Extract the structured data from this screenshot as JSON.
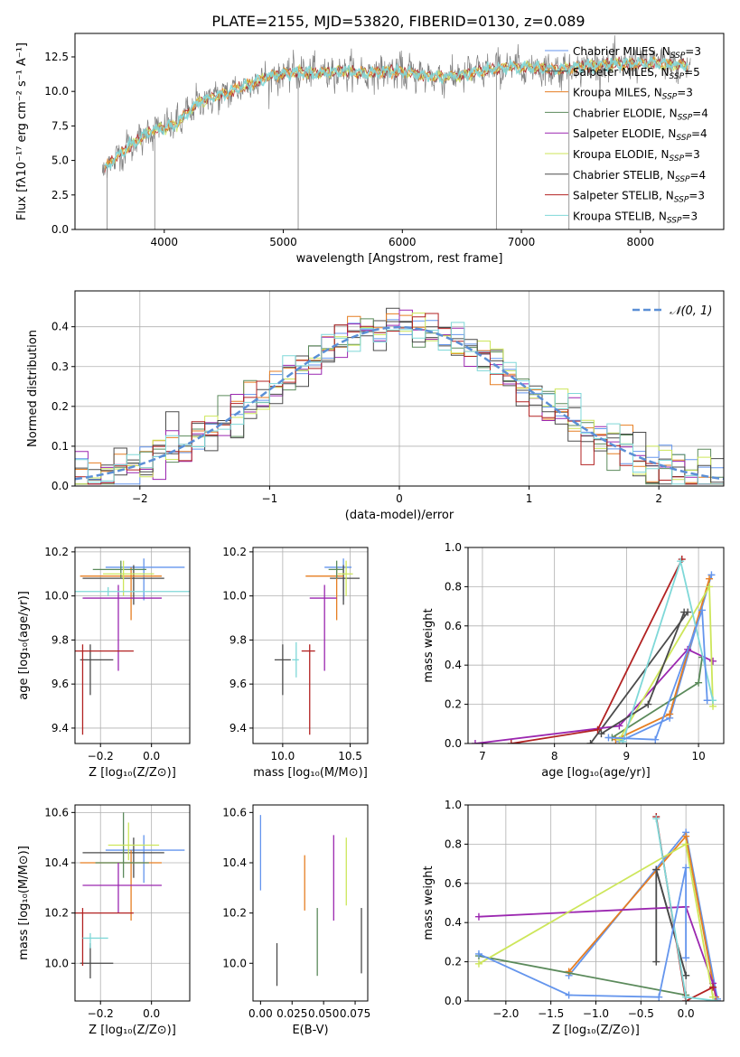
{
  "figure": {
    "title": "PLATE=2155, MJD=53820, FIBERID=0130, z=0.089"
  },
  "series_meta": [
    {
      "name": "Chabrier MILES",
      "nssp": "3",
      "color": "#6495ed"
    },
    {
      "name": "Salpeter MILES",
      "nssp": "5",
      "color": "#4b4b4b"
    },
    {
      "name": "Kroupa MILES",
      "nssp": "3",
      "color": "#e67e22"
    },
    {
      "name": "Chabrier ELODIE",
      "nssp": "4",
      "color": "#5b8a5b"
    },
    {
      "name": "Salpeter ELODIE",
      "nssp": "4",
      "color": "#9b27b0"
    },
    {
      "name": "Kroupa ELODIE",
      "nssp": "3",
      "color": "#cde65a"
    },
    {
      "name": "Chabrier STELIB",
      "nssp": "4",
      "color": "#4a4a4a"
    },
    {
      "name": "Salpeter STELIB",
      "nssp": "3",
      "color": "#b22222"
    },
    {
      "name": "Kroupa STELIB",
      "nssp": "3",
      "color": "#7fd8d8"
    }
  ],
  "chart_data": [
    {
      "id": "spectrum",
      "type": "line",
      "xlabel": "wavelength [Angstrom, rest frame]",
      "ylabel": "Flux [fλ10⁻¹⁷ erg cm⁻² s⁻¹ A⁻¹]",
      "xlim": [
        3250,
        8700
      ],
      "ylim": [
        0,
        14.2
      ],
      "xticks": [
        4000,
        5000,
        6000,
        7000,
        8000
      ],
      "yticks": [
        0.0,
        2.5,
        5.0,
        7.5,
        10.0,
        12.5
      ],
      "grid": false,
      "legend": "right",
      "x": [
        3500,
        3700,
        3900,
        4100,
        4300,
        4500,
        4700,
        4900,
        5100,
        5300,
        5500,
        5700,
        5900,
        6100,
        6300,
        6500,
        6700,
        6900,
        7100,
        7300,
        7500,
        7700,
        7900,
        8100,
        8300
      ],
      "y": [
        4.5,
        6.0,
        7.2,
        7.6,
        9.3,
        9.8,
        10.5,
        11.1,
        11.4,
        11.3,
        11.5,
        11.3,
        11.5,
        11.3,
        11.0,
        11.2,
        11.5,
        11.8,
        11.7,
        11.6,
        11.8,
        11.9,
        12.0,
        12.1,
        11.9
      ]
    },
    {
      "id": "residuals",
      "type": "line",
      "xlabel": "(data-model)/error",
      "ylabel": "Normed distribution",
      "xlim": [
        -2.5,
        2.5
      ],
      "ylim": [
        0,
        0.49
      ],
      "xticks": [
        -2,
        -1,
        0,
        1,
        2
      ],
      "yticks": [
        0.0,
        0.1,
        0.2,
        0.3,
        0.4
      ],
      "grid": true,
      "legend": "top-right",
      "legend_label": "𝒩(0, 1)",
      "normal_mean": 0,
      "normal_sigma": 1,
      "hist_bins": [
        -2.5,
        2.5,
        0.1
      ]
    },
    {
      "id": "age-vs-Z",
      "type": "scatter",
      "xlabel": "Z [log₁₀(Z/Z⊙)]",
      "ylabel": "age  [log₁₀(age/yr)]",
      "xlim": [
        -0.3,
        0.15
      ],
      "ylim": [
        9.33,
        10.22
      ],
      "xticks": [
        -0.2,
        0.0
      ],
      "yticks": [
        9.4,
        9.6,
        9.8,
        10.0,
        10.2
      ],
      "grid": true,
      "points": [
        {
          "x": -0.03,
          "y": 10.13,
          "xerr": [
            0.15,
            0.16
          ],
          "yerr": [
            0.15,
            0.04
          ]
        },
        {
          "x": -0.07,
          "y": 10.08,
          "xerr": [
            0.2,
            0.12
          ],
          "yerr": [
            0.12,
            0.06
          ]
        },
        {
          "x": -0.08,
          "y": 10.09,
          "xerr": [
            0.2,
            0.12
          ],
          "yerr": [
            0.2,
            0.04
          ]
        },
        {
          "x": -0.12,
          "y": 10.12,
          "xerr": [
            0.11,
            0.1
          ],
          "yerr": [
            0.04,
            0.04
          ]
        },
        {
          "x": -0.13,
          "y": 9.99,
          "xerr": [
            0.14,
            0.17
          ],
          "yerr": [
            0.33,
            0.06
          ]
        },
        {
          "x": -0.11,
          "y": 10.1,
          "xerr": [
            0.08,
            0.12
          ],
          "yerr": [
            0.1,
            0.06
          ]
        },
        {
          "x": -0.24,
          "y": 9.71,
          "xerr": [
            0.04,
            0.09
          ],
          "yerr": [
            0.16,
            0.07
          ]
        },
        {
          "x": -0.27,
          "y": 9.75,
          "xerr": [
            0.03,
            0.2
          ],
          "yerr": [
            0.38,
            0.03
          ]
        },
        {
          "x": -0.17,
          "y": 10.02,
          "xerr": [
            0.15,
            0.32
          ],
          "yerr": [
            0.02,
            0.02
          ]
        }
      ]
    },
    {
      "id": "age-vs-mass",
      "type": "scatter",
      "xlabel": "mass [log₁₀(M/M⊙)]",
      "ylabel": "",
      "xlim": [
        9.78,
        10.63
      ],
      "ylim": [
        9.33,
        10.22
      ],
      "xticks": [
        10.0,
        10.5
      ],
      "yticks": [
        9.4,
        9.6,
        9.8,
        10.0,
        10.2
      ],
      "grid": true,
      "points": [
        {
          "x": 10.45,
          "y": 10.13,
          "xerr": [
            0.14,
            0.06
          ],
          "yerr": [
            0.15,
            0.04
          ]
        },
        {
          "x": 10.45,
          "y": 10.08,
          "xerr": [
            0.1,
            0.12
          ],
          "yerr": [
            0.12,
            0.06
          ]
        },
        {
          "x": 10.4,
          "y": 10.09,
          "xerr": [
            0.23,
            0.05
          ],
          "yerr": [
            0.2,
            0.04
          ]
        },
        {
          "x": 10.4,
          "y": 10.12,
          "xerr": [
            0.06,
            0.05
          ],
          "yerr": [
            0.04,
            0.04
          ]
        },
        {
          "x": 10.31,
          "y": 9.99,
          "xerr": [
            0.11,
            0.09
          ],
          "yerr": [
            0.33,
            0.06
          ]
        },
        {
          "x": 10.47,
          "y": 10.1,
          "xerr": [
            0.06,
            0.05
          ],
          "yerr": [
            0.1,
            0.06
          ]
        },
        {
          "x": 10.0,
          "y": 9.71,
          "xerr": [
            0.06,
            0.06
          ],
          "yerr": [
            0.16,
            0.07
          ]
        },
        {
          "x": 10.2,
          "y": 9.75,
          "xerr": [
            0.06,
            0.04
          ],
          "yerr": [
            0.38,
            0.03
          ]
        },
        {
          "x": 10.1,
          "y": 9.71,
          "xerr": [
            0.03,
            0.02
          ],
          "yerr": [
            0.08,
            0.08
          ]
        }
      ]
    },
    {
      "id": "weight-vs-age",
      "type": "line",
      "xlabel": "age  [log₁₀(age/yr)]",
      "ylabel": "mass weight",
      "xlim": [
        6.8,
        10.35
      ],
      "ylim": [
        0,
        1.0
      ],
      "xticks": [
        7,
        8,
        9,
        10
      ],
      "yticks": [
        0.0,
        0.2,
        0.4,
        0.6,
        0.8,
        1.0
      ],
      "grid": true,
      "series": [
        {
          "x": [
            8.9,
            9.6,
            10.18
          ],
          "y": [
            0.01,
            0.13,
            0.86
          ]
        },
        {
          "x": [
            8.5,
            9.85
          ],
          "y": [
            0.0,
            0.67
          ]
        },
        {
          "x": [
            8.85,
            9.6,
            10.15
          ],
          "y": [
            0.02,
            0.15,
            0.84
          ]
        },
        {
          "x": [
            8.8,
            10.0,
            10.05
          ],
          "y": [
            0.03,
            0.31,
            0.44
          ]
        },
        {
          "x": [
            6.9,
            8.9,
            9.85,
            10.2
          ],
          "y": [
            0.0,
            0.09,
            0.48,
            0.42
          ]
        },
        {
          "x": [
            8.9,
            10.15,
            10.2
          ],
          "y": [
            0.02,
            0.8,
            0.19
          ]
        },
        {
          "x": [
            8.65,
            9.3,
            9.8
          ],
          "y": [
            0.05,
            0.2,
            0.67
          ]
        },
        {
          "x": [
            7.4,
            8.6,
            9.77
          ],
          "y": [
            0.0,
            0.07,
            0.94
          ]
        },
        {
          "x": [
            8.95,
            9.75,
            10.2
          ],
          "y": [
            0.01,
            0.93,
            0.22
          ]
        },
        {
          "x": [
            8.75,
            9.4,
            10.05,
            10.12
          ],
          "y": [
            0.03,
            0.02,
            0.68,
            0.22
          ]
        }
      ]
    },
    {
      "id": "mass-vs-Z",
      "type": "scatter",
      "xlabel": "Z [log₁₀(Z/Z⊙)]",
      "ylabel": "mass [log₁₀(M/M⊙)]",
      "xlim": [
        -0.3,
        0.15
      ],
      "ylim": [
        9.85,
        10.63
      ],
      "xticks": [
        -0.2,
        0.0
      ],
      "yticks": [
        10.0,
        10.2,
        10.4,
        10.6
      ],
      "grid": true,
      "points": [
        {
          "x": -0.03,
          "y": 10.45,
          "xerr": [
            0.15,
            0.16
          ],
          "yerr": [
            0.13,
            0.06
          ]
        },
        {
          "x": -0.07,
          "y": 10.44,
          "xerr": [
            0.2,
            0.12
          ],
          "yerr": [
            0.1,
            0.06
          ]
        },
        {
          "x": -0.08,
          "y": 10.4,
          "xerr": [
            0.2,
            0.12
          ],
          "yerr": [
            0.23,
            0.05
          ]
        },
        {
          "x": -0.11,
          "y": 10.4,
          "xerr": [
            0.11,
            0.1
          ],
          "yerr": [
            0.06,
            0.2
          ]
        },
        {
          "x": -0.13,
          "y": 10.31,
          "xerr": [
            0.14,
            0.17
          ],
          "yerr": [
            0.11,
            0.09
          ]
        },
        {
          "x": -0.09,
          "y": 10.47,
          "xerr": [
            0.08,
            0.12
          ],
          "yerr": [
            0.06,
            0.09
          ]
        },
        {
          "x": -0.24,
          "y": 10.0,
          "xerr": [
            0.04,
            0.09
          ],
          "yerr": [
            0.06,
            0.08
          ]
        },
        {
          "x": -0.27,
          "y": 10.2,
          "xerr": [
            0.03,
            0.2
          ],
          "yerr": [
            0.21,
            0.02
          ]
        },
        {
          "x": -0.24,
          "y": 10.1,
          "xerr": [
            0.03,
            0.07
          ],
          "yerr": [
            0.04,
            0.02
          ]
        }
      ]
    },
    {
      "id": "mass-vs-ebv",
      "type": "scatter",
      "xlabel": "E(B-V)",
      "ylabel": "",
      "xlim": [
        -0.006,
        0.085
      ],
      "ylim": [
        9.85,
        10.63
      ],
      "xticks": [
        0.0,
        0.025,
        0.05,
        0.075
      ],
      "yticks": [
        10.0,
        10.2,
        10.4,
        10.6
      ],
      "grid": false,
      "points": [
        {
          "x": 0.0,
          "y": 10.45,
          "xerr": [
            0,
            0
          ],
          "yerr": [
            0.16,
            0.14
          ]
        },
        {
          "x": 0.013,
          "y": 10.0,
          "xerr": [
            0,
            0
          ],
          "yerr": [
            0.09,
            0.08
          ]
        },
        {
          "x": 0.035,
          "y": 10.33,
          "xerr": [
            0,
            0
          ],
          "yerr": [
            0.12,
            0.1
          ]
        },
        {
          "x": 0.045,
          "y": 10.09,
          "xerr": [
            0,
            0
          ],
          "yerr": [
            0.14,
            0.13
          ]
        },
        {
          "x": 0.058,
          "y": 10.35,
          "xerr": [
            0,
            0
          ],
          "yerr": [
            0.18,
            0.16
          ]
        },
        {
          "x": 0.068,
          "y": 10.38,
          "xerr": [
            0,
            0
          ],
          "yerr": [
            0.15,
            0.12
          ]
        },
        {
          "x": 0.08,
          "y": 10.09,
          "xerr": [
            0,
            0
          ],
          "yerr": [
            0.13,
            0.13
          ]
        }
      ]
    },
    {
      "id": "weight-vs-Z",
      "type": "line",
      "xlabel": "Z [log₁₀(Z/Z⊙)]",
      "ylabel": "mass weight",
      "xlim": [
        -2.42,
        0.42
      ],
      "ylim": [
        0,
        1.0
      ],
      "xticks": [
        -2.0,
        -1.5,
        -1.0,
        -0.5,
        0.0
      ],
      "yticks": [
        0.0,
        0.2,
        0.4,
        0.6,
        0.8,
        1.0
      ],
      "grid": true,
      "series": [
        {
          "x": [
            -1.3,
            0.0,
            0.35
          ],
          "y": [
            0.13,
            0.86,
            0.01
          ]
        },
        {
          "x": [
            -0.33,
            -0.33,
            0.0
          ],
          "y": [
            0.2,
            0.67,
            0.13
          ]
        },
        {
          "x": [
            -1.3,
            0.0,
            0.33
          ],
          "y": [
            0.15,
            0.84,
            0.02
          ]
        },
        {
          "x": [
            -2.3,
            0.0
          ],
          "y": [
            0.23,
            0.03
          ]
        },
        {
          "x": [
            -2.3,
            0.0,
            0.3,
            0.35
          ],
          "y": [
            0.43,
            0.48,
            0.09,
            0.0
          ]
        },
        {
          "x": [
            -2.3,
            0.0,
            0.3
          ],
          "y": [
            0.19,
            0.8,
            0.02
          ]
        },
        {
          "x": [
            -0.33,
            0.0
          ],
          "y": [
            0.67,
            0.13
          ]
        },
        {
          "x": [
            -0.33,
            0.0,
            0.3
          ],
          "y": [
            0.94,
            0.0,
            0.07
          ]
        },
        {
          "x": [
            -0.33,
            0.0,
            0.35
          ],
          "y": [
            0.93,
            0.02,
            0.0
          ]
        },
        {
          "x": [
            -2.3,
            -1.3,
            -0.3,
            0.0,
            0.0
          ],
          "y": [
            0.24,
            0.03,
            0.02,
            0.68,
            0.22
          ]
        }
      ]
    }
  ]
}
